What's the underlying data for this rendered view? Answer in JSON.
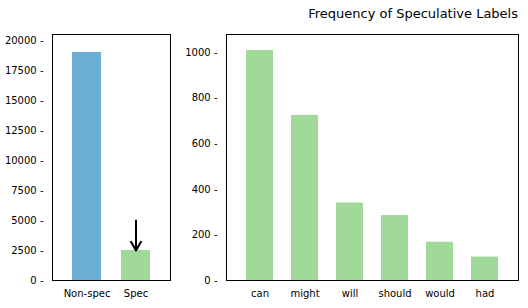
{
  "chart_data": [
    {
      "type": "bar",
      "categories": [
        "Non-spec",
        "Spec"
      ],
      "values": [
        19000,
        2500
      ],
      "colors": [
        "#6baed6",
        "#a1d99b"
      ],
      "ylim": [
        0,
        20500
      ],
      "yticks": [
        {
          "value": 0,
          "label": "0 -"
        },
        {
          "value": 2500,
          "label": "2500 -"
        },
        {
          "value": 5000,
          "label": "5000 -"
        },
        {
          "value": 7500,
          "label": "7500 -"
        },
        {
          "value": 10000,
          "label": "10000 -"
        },
        {
          "value": 12500,
          "label": "12500 -"
        },
        {
          "value": 15000,
          "label": "15000 -"
        },
        {
          "value": 17500,
          "label": "17500 -"
        },
        {
          "value": 20000,
          "label": "20000 -"
        }
      ]
    },
    {
      "type": "bar",
      "title": "Frequency of Speculative Labels",
      "categories": [
        "can",
        "might",
        "will",
        "should",
        "would",
        "had"
      ],
      "values": [
        1010,
        725,
        340,
        285,
        168,
        103
      ],
      "color": "#a1d99b",
      "ylim": [
        0,
        1080
      ],
      "yticks": [
        {
          "value": 0,
          "label": "0 -"
        },
        {
          "value": 200,
          "label": "200 -"
        },
        {
          "value": 400,
          "label": "400 -"
        },
        {
          "value": 600,
          "label": "600 -"
        },
        {
          "value": 800,
          "label": "800 -"
        },
        {
          "value": 1000,
          "label": "1000 -"
        }
      ]
    }
  ]
}
